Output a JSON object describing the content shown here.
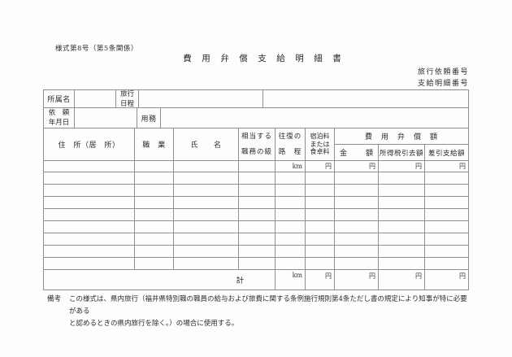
{
  "page": {
    "form_number": "様式第8号（第5条関係）",
    "title": "費　用　弁　償　支　給　明　細　書",
    "travel_request_no": "旅行依頼番号",
    "payment_detail_no": "支給明細番号"
  },
  "info": {
    "affiliation_label": "所属名",
    "affiliation_value": "",
    "itinerary_label_l1": "旅行",
    "itinerary_label_l2": "日程",
    "itinerary_value": "",
    "request_date_l1": "依　頼",
    "request_date_l2": "年月日",
    "request_date_value": "",
    "business_label": "用務",
    "business_value": ""
  },
  "table": {
    "col_address": "住　所（居　所）",
    "col_occupation": "職　業",
    "col_name": "氏　　名",
    "col_grade_l1": "相当する",
    "col_grade_l2": "職務の級",
    "col_roundtrip_l1": "往復の",
    "col_roundtrip_l2": "路　程",
    "col_lodging_l1": "宿泊料",
    "col_lodging_l2": "または",
    "col_lodging_l3": "食卓料",
    "col_compensation": "費　用　弁　償　額",
    "col_amount_l": "金",
    "col_amount_r": "額",
    "col_tax": "所得税引去額",
    "col_net": "差引支給額",
    "unit_km": "km",
    "unit_yen": "円",
    "total_label": "計",
    "empty_row_count": 8
  },
  "note": {
    "label": "備考",
    "line1": "この様式は、県内旅行（福井県特別職の職員の給与および旅費に関する条例施行規則第4条ただし書の規定により知事が特に必要がある",
    "line2": "と認めるときの県内旅行を除く。）の場合に使用する。"
  }
}
